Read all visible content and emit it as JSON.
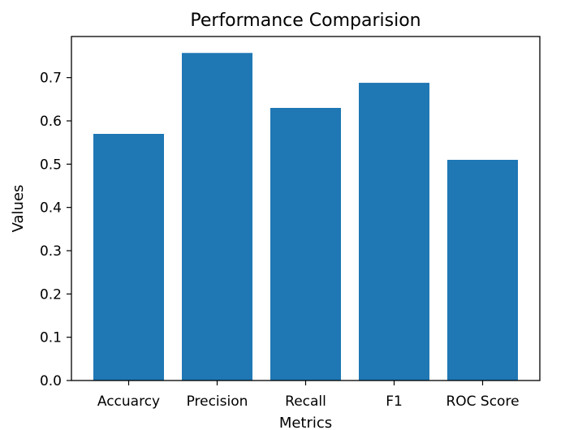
{
  "chart_data": {
    "type": "bar",
    "title": "Performance Comparision",
    "xlabel": "Metrics",
    "ylabel": "Values",
    "categories": [
      "Accuarcy",
      "Precision",
      "Recall",
      "F1",
      "ROC Score"
    ],
    "values": [
      0.57,
      0.757,
      0.63,
      0.688,
      0.51
    ],
    "ylim": [
      0,
      0.795
    ],
    "yticks": [
      "0.0",
      "0.1",
      "0.2",
      "0.3",
      "0.4",
      "0.5",
      "0.6",
      "0.7"
    ],
    "bar_color": "#1f77b4",
    "grid": false,
    "legend": "none"
  }
}
